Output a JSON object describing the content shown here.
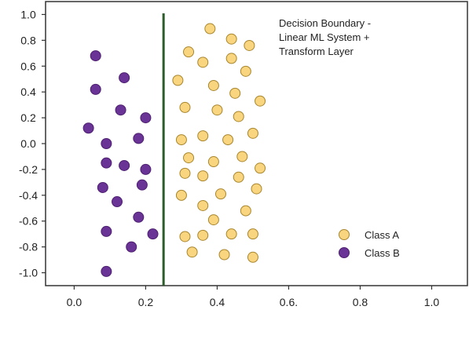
{
  "chart_data": {
    "type": "scatter",
    "title_lines": [
      "Decision Boundary -",
      "Linear ML System +",
      "Transform Layer"
    ],
    "xlabel": "",
    "ylabel": "",
    "xlim": [
      -0.08,
      1.1
    ],
    "ylim": [
      -1.1,
      1.1
    ],
    "x_ticks": [
      {
        "value": 0.0,
        "label": "0.0"
      },
      {
        "value": 0.2,
        "label": "0.2"
      },
      {
        "value": 0.4,
        "label": "0.4"
      },
      {
        "value": 0.6,
        "label": "0.6."
      },
      {
        "value": 0.8,
        "label": "0.8"
      },
      {
        "value": 1.0,
        "label": "1.0"
      }
    ],
    "y_ticks": [
      {
        "value": 1.0,
        "label": "1.0"
      },
      {
        "value": 0.8,
        "label": "0.8"
      },
      {
        "value": 0.6,
        "label": "0.6"
      },
      {
        "value": 0.4,
        "label": "0.4"
      },
      {
        "value": 0.2,
        "label": "0.2"
      },
      {
        "value": 0.0,
        "label": "0.0"
      },
      {
        "value": -0.2,
        "label": "-0.2"
      },
      {
        "value": -0.4,
        "label": "-0.4"
      },
      {
        "value": -0.6,
        "label": "-0.6"
      },
      {
        "value": -0.8,
        "label": "-0.8"
      },
      {
        "value": -1.0,
        "label": "-1.0"
      }
    ],
    "grid": false,
    "legend_position": "bottom-right",
    "decision_boundary": {
      "x": 0.25,
      "color": "#2e5d2c"
    },
    "series": [
      {
        "name": "Class A",
        "color": "#f8d57e",
        "edge_color": "#a8862e",
        "points": [
          {
            "x": 0.38,
            "y": 0.89
          },
          {
            "x": 0.44,
            "y": 0.81
          },
          {
            "x": 0.49,
            "y": 0.76
          },
          {
            "x": 0.32,
            "y": 0.71
          },
          {
            "x": 0.36,
            "y": 0.63
          },
          {
            "x": 0.44,
            "y": 0.66
          },
          {
            "x": 0.48,
            "y": 0.56
          },
          {
            "x": 0.29,
            "y": 0.49
          },
          {
            "x": 0.39,
            "y": 0.45
          },
          {
            "x": 0.45,
            "y": 0.39
          },
          {
            "x": 0.52,
            "y": 0.33
          },
          {
            "x": 0.31,
            "y": 0.28
          },
          {
            "x": 0.4,
            "y": 0.26
          },
          {
            "x": 0.46,
            "y": 0.21
          },
          {
            "x": 0.3,
            "y": 0.03
          },
          {
            "x": 0.36,
            "y": 0.06
          },
          {
            "x": 0.43,
            "y": 0.03
          },
          {
            "x": 0.5,
            "y": 0.08
          },
          {
            "x": 0.32,
            "y": -0.11
          },
          {
            "x": 0.39,
            "y": -0.14
          },
          {
            "x": 0.47,
            "y": -0.1
          },
          {
            "x": 0.52,
            "y": -0.19
          },
          {
            "x": 0.31,
            "y": -0.23
          },
          {
            "x": 0.36,
            "y": -0.25
          },
          {
            "x": 0.46,
            "y": -0.26
          },
          {
            "x": 0.51,
            "y": -0.35
          },
          {
            "x": 0.3,
            "y": -0.4
          },
          {
            "x": 0.41,
            "y": -0.39
          },
          {
            "x": 0.36,
            "y": -0.48
          },
          {
            "x": 0.48,
            "y": -0.52
          },
          {
            "x": 0.39,
            "y": -0.59
          },
          {
            "x": 0.31,
            "y": -0.72
          },
          {
            "x": 0.36,
            "y": -0.71
          },
          {
            "x": 0.44,
            "y": -0.7
          },
          {
            "x": 0.5,
            "y": -0.7
          },
          {
            "x": 0.33,
            "y": -0.84
          },
          {
            "x": 0.42,
            "y": -0.86
          },
          {
            "x": 0.5,
            "y": -0.88
          }
        ]
      },
      {
        "name": "Class B",
        "color": "#6a3396",
        "edge_color": "#4d2070",
        "points": [
          {
            "x": 0.06,
            "y": 0.68
          },
          {
            "x": 0.14,
            "y": 0.51
          },
          {
            "x": 0.06,
            "y": 0.42
          },
          {
            "x": 0.13,
            "y": 0.26
          },
          {
            "x": 0.2,
            "y": 0.2
          },
          {
            "x": 0.04,
            "y": 0.12
          },
          {
            "x": 0.18,
            "y": 0.04
          },
          {
            "x": 0.09,
            "y": 0.0
          },
          {
            "x": 0.09,
            "y": -0.15
          },
          {
            "x": 0.14,
            "y": -0.17
          },
          {
            "x": 0.2,
            "y": -0.2
          },
          {
            "x": 0.08,
            "y": -0.34
          },
          {
            "x": 0.19,
            "y": -0.32
          },
          {
            "x": 0.12,
            "y": -0.45
          },
          {
            "x": 0.18,
            "y": -0.57
          },
          {
            "x": 0.09,
            "y": -0.68
          },
          {
            "x": 0.22,
            "y": -0.7
          },
          {
            "x": 0.16,
            "y": -0.8
          },
          {
            "x": 0.09,
            "y": -0.99
          }
        ]
      }
    ]
  }
}
